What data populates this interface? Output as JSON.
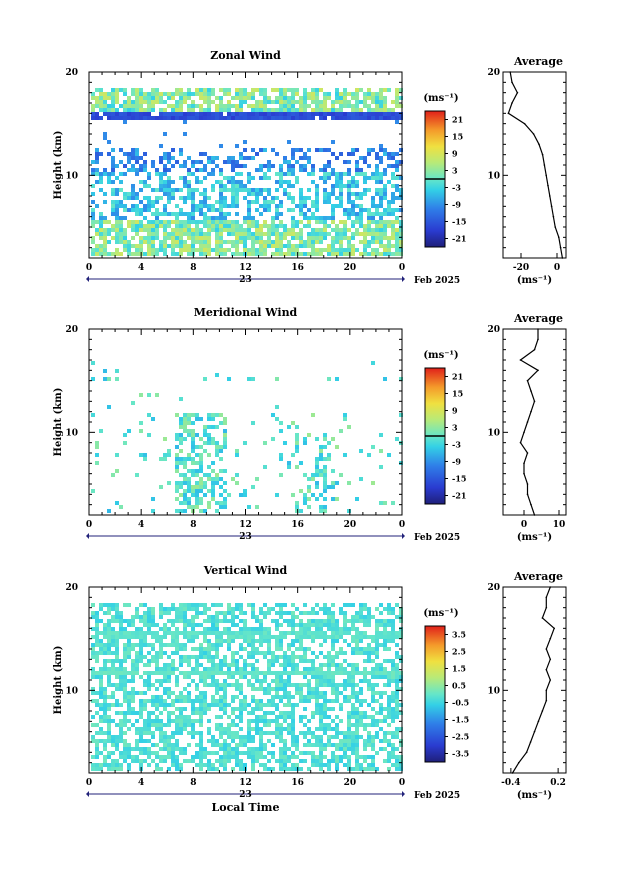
{
  "page": {
    "date_label": "Feb 2025",
    "day_label": "23",
    "x_axis_label": "Local Time"
  },
  "chart_data": [
    {
      "type": "heatmap",
      "title": "Zonal Wind",
      "ylabel": "Height (km)",
      "xlabel": "",
      "x_ticks": [
        "0",
        "4",
        "8",
        "12",
        "16",
        "20",
        "0"
      ],
      "xlim": [
        0,
        24
      ],
      "y_ticks": [
        "20",
        "10"
      ],
      "ylim": [
        2,
        20
      ],
      "colorbar": {
        "unit": "(ms⁻¹)",
        "ticks": [
          "21",
          "15",
          "9",
          "3",
          "-3",
          "-9",
          "-15",
          "-21"
        ],
        "range": [
          -24,
          24
        ]
      },
      "average_profile": {
        "title": "Average",
        "xlabel": "(ms⁻¹)",
        "x_ticks": [
          "-20",
          "0"
        ],
        "xlim": [
          -30,
          5
        ],
        "y_ticks": [
          "20",
          "10"
        ],
        "heights": [
          2,
          3,
          4,
          5,
          6,
          7,
          8,
          9,
          10,
          11,
          12,
          13,
          14,
          15,
          16,
          17,
          18,
          19,
          20
        ],
        "values": [
          3,
          2,
          1,
          -1,
          -2,
          -3,
          -4,
          -5,
          -6,
          -7,
          -8,
          -10,
          -13,
          -18,
          -27,
          -25,
          -22,
          -25,
          -26
        ]
      }
    },
    {
      "type": "heatmap",
      "title": "Meridional Wind",
      "ylabel": "Height (km)",
      "xlabel": "",
      "x_ticks": [
        "0",
        "4",
        "8",
        "12",
        "16",
        "20",
        "0"
      ],
      "xlim": [
        0,
        24
      ],
      "y_ticks": [
        "20",
        "10"
      ],
      "ylim": [
        2,
        20
      ],
      "colorbar": {
        "unit": "(ms⁻¹)",
        "ticks": [
          "21",
          "15",
          "9",
          "3",
          "-3",
          "-9",
          "-15",
          "-21"
        ],
        "range": [
          -24,
          24
        ]
      },
      "average_profile": {
        "title": "Average",
        "xlabel": "(ms⁻¹)",
        "x_ticks": [
          "0",
          "10"
        ],
        "xlim": [
          -6,
          12
        ],
        "y_ticks": [
          "20",
          "10"
        ],
        "heights": [
          2,
          3,
          4,
          5,
          6,
          7,
          8,
          9,
          10,
          11,
          12,
          13,
          14,
          15,
          16,
          17,
          18,
          19,
          20
        ],
        "values": [
          3,
          2,
          1,
          1,
          0,
          0,
          1,
          -1,
          0,
          1,
          2,
          3,
          2,
          1,
          4,
          -1,
          3,
          4,
          4
        ]
      }
    },
    {
      "type": "heatmap",
      "title": "Vertical Wind",
      "ylabel": "Height (km)",
      "xlabel": "Local Time",
      "x_ticks": [
        "0",
        "4",
        "8",
        "12",
        "16",
        "20",
        "0"
      ],
      "xlim": [
        0,
        24
      ],
      "y_ticks": [
        "20",
        "10"
      ],
      "ylim": [
        2,
        20
      ],
      "colorbar": {
        "unit": "(ms⁻¹)",
        "ticks": [
          "3.5",
          "2.5",
          "1.5",
          "0.5",
          "-0.5",
          "-1.5",
          "-2.5",
          "-3.5"
        ],
        "range": [
          -4,
          4
        ]
      },
      "average_profile": {
        "title": "Average",
        "xlabel": "(ms⁻¹)",
        "x_ticks": [
          "-0.4",
          "0.2"
        ],
        "xlim": [
          -0.5,
          0.3
        ],
        "y_ticks": [
          "20",
          "10"
        ],
        "heights": [
          2,
          3,
          4,
          5,
          6,
          7,
          8,
          9,
          10,
          11,
          12,
          13,
          14,
          15,
          16,
          17,
          18,
          19,
          20
        ],
        "values": [
          -0.38,
          -0.3,
          -0.2,
          -0.15,
          -0.1,
          -0.05,
          0,
          0.05,
          0.05,
          0.1,
          0.05,
          0.1,
          0.05,
          0.1,
          0.15,
          0.0,
          0.05,
          0.05,
          0.1
        ]
      }
    }
  ]
}
